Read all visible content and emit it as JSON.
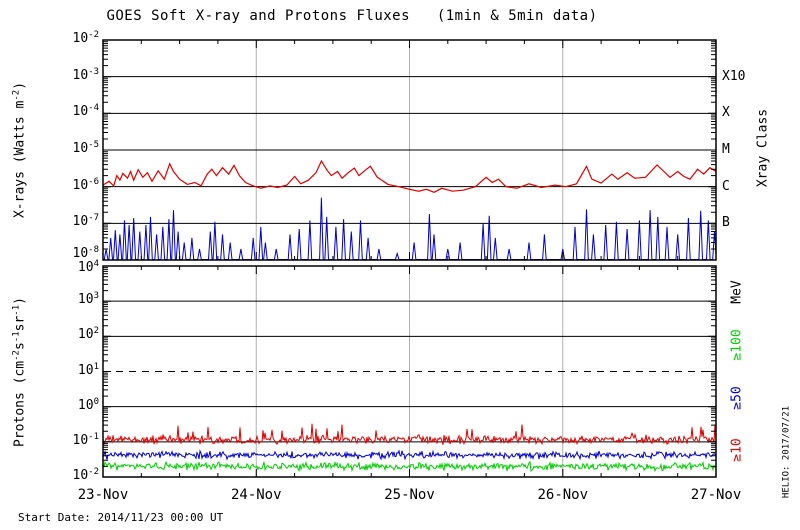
{
  "title": "GOES Soft X-ray and Protons Fluxes   (1min & 5min data)",
  "footer": {
    "start_date": "Start Date: 2014/11/23 00:00 UT"
  },
  "watermark": "HELIO: 2017/07/21",
  "colors": {
    "red": "#dd0000",
    "blue": "#0000cc",
    "green": "#00cc00",
    "grid_gray": "#b0b0b0",
    "frame": "#000000"
  },
  "x_axis": {
    "dates": [
      "23-Nov",
      "24-Nov",
      "25-Nov",
      "26-Nov",
      "27-Nov"
    ],
    "x_unit": "days since 2014-11-23 00:00 UT",
    "xlim_days": [
      0,
      4
    ],
    "minor_ticks_per_day": 4
  },
  "chart_data": [
    {
      "type": "line",
      "panel": "xray",
      "ylabel": "X-rays (Watts m-2)",
      "ylabel_segments": [
        {
          "text": "X-rays (Watts m"
        },
        {
          "text": "-2",
          "sup": true
        },
        {
          "text": ")"
        }
      ],
      "yscale": "log",
      "ylim": [
        1e-08,
        0.01
      ],
      "yticks_exponents": [
        -2,
        -3,
        -4,
        -5,
        -6,
        -7,
        -8
      ],
      "grid_exponents_solid": [
        -3,
        -4,
        -5,
        -6,
        -7
      ],
      "right_axis_title": "Xray Class",
      "right_class_labels": [
        {
          "label": "X10",
          "exponent": -3
        },
        {
          "label": "X",
          "exponent": -4
        },
        {
          "label": "M",
          "exponent": -5
        },
        {
          "label": "C",
          "exponent": -6
        },
        {
          "label": "B",
          "exponent": -7
        }
      ],
      "series": [
        {
          "name": "xray-long-wavelength",
          "color_key": "red",
          "points": [
            [
              0.0,
              1.1e-06
            ],
            [
              0.04,
              1.4e-06
            ],
            [
              0.07,
              1.05e-06
            ],
            [
              0.09,
              2e-06
            ],
            [
              0.11,
              1.5e-06
            ],
            [
              0.13,
              2.3e-06
            ],
            [
              0.16,
              1.7e-06
            ],
            [
              0.18,
              2.6e-06
            ],
            [
              0.2,
              1.5e-06
            ],
            [
              0.23,
              2.9e-06
            ],
            [
              0.26,
              1.8e-06
            ],
            [
              0.29,
              2.4e-06
            ],
            [
              0.32,
              1.4e-06
            ],
            [
              0.36,
              2.7e-06
            ],
            [
              0.4,
              1.6e-06
            ],
            [
              0.435,
              4.2e-06
            ],
            [
              0.46,
              2.6e-06
            ],
            [
              0.5,
              1.6e-06
            ],
            [
              0.55,
              1.15e-06
            ],
            [
              0.6,
              1.3e-06
            ],
            [
              0.64,
              1.05e-06
            ],
            [
              0.68,
              2.2e-06
            ],
            [
              0.71,
              3e-06
            ],
            [
              0.74,
              2e-06
            ],
            [
              0.78,
              3.3e-06
            ],
            [
              0.82,
              2.2e-06
            ],
            [
              0.855,
              3.8e-06
            ],
            [
              0.89,
              2e-06
            ],
            [
              0.93,
              1.3e-06
            ],
            [
              0.98,
              1.05e-06
            ],
            [
              1.03,
              9e-07
            ],
            [
              1.09,
              1.05e-06
            ],
            [
              1.14,
              9.5e-07
            ],
            [
              1.2,
              1.1e-06
            ],
            [
              1.25,
              1.9e-06
            ],
            [
              1.29,
              1.2e-06
            ],
            [
              1.34,
              1.5e-06
            ],
            [
              1.39,
              2.4e-06
            ],
            [
              1.425,
              5e-06
            ],
            [
              1.46,
              2.9e-06
            ],
            [
              1.49,
              2e-06
            ],
            [
              1.53,
              2.6e-06
            ],
            [
              1.56,
              1.7e-06
            ],
            [
              1.6,
              2.4e-06
            ],
            [
              1.64,
              3.2e-06
            ],
            [
              1.67,
              2e-06
            ],
            [
              1.71,
              2.8e-06
            ],
            [
              1.745,
              3.6e-06
            ],
            [
              1.79,
              1.8e-06
            ],
            [
              1.86,
              1.15e-06
            ],
            [
              1.93,
              1e-06
            ],
            [
              2.0,
              8.5e-07
            ],
            [
              2.06,
              7.5e-07
            ],
            [
              2.11,
              8.5e-07
            ],
            [
              2.16,
              7e-07
            ],
            [
              2.21,
              9e-07
            ],
            [
              2.28,
              7.5e-07
            ],
            [
              2.35,
              8e-07
            ],
            [
              2.43,
              1e-06
            ],
            [
              2.5,
              1.8e-06
            ],
            [
              2.54,
              1.3e-06
            ],
            [
              2.58,
              1.6e-06
            ],
            [
              2.63,
              1e-06
            ],
            [
              2.7,
              9e-07
            ],
            [
              2.78,
              1.2e-06
            ],
            [
              2.86,
              9.5e-07
            ],
            [
              2.95,
              1.1e-06
            ],
            [
              3.02,
              1e-06
            ],
            [
              3.09,
              1.2e-06
            ],
            [
              3.155,
              3.6e-06
            ],
            [
              3.19,
              1.6e-06
            ],
            [
              3.25,
              1.25e-06
            ],
            [
              3.32,
              2.2e-06
            ],
            [
              3.36,
              1.6e-06
            ],
            [
              3.42,
              2.4e-06
            ],
            [
              3.47,
              1.7e-06
            ],
            [
              3.54,
              1.8e-06
            ],
            [
              3.615,
              3.9e-06
            ],
            [
              3.66,
              2.6e-06
            ],
            [
              3.7,
              1.8e-06
            ],
            [
              3.75,
              2.6e-06
            ],
            [
              3.79,
              1.9e-06
            ],
            [
              3.83,
              1.6e-06
            ],
            [
              3.88,
              3e-06
            ],
            [
              3.92,
              2.2e-06
            ],
            [
              3.96,
              3.3e-06
            ],
            [
              4.0,
              2.6e-06
            ]
          ]
        },
        {
          "name": "xray-short-wavelength",
          "color_key": "blue",
          "baseline": 8e-09,
          "spikes": [
            [
              0.02,
              2e-08
            ],
            [
              0.05,
              4e-08
            ],
            [
              0.08,
              6.5e-08
            ],
            [
              0.11,
              5e-08
            ],
            [
              0.14,
              1.2e-07
            ],
            [
              0.17,
              9e-08
            ],
            [
              0.2,
              1.4e-07
            ],
            [
              0.24,
              6e-08
            ],
            [
              0.28,
              9e-08
            ],
            [
              0.31,
              1.5e-07
            ],
            [
              0.35,
              5e-08
            ],
            [
              0.39,
              8e-08
            ],
            [
              0.43,
              1.3e-07
            ],
            [
              0.46,
              2.3e-07
            ],
            [
              0.49,
              6e-08
            ],
            [
              0.53,
              3e-08
            ],
            [
              0.58,
              4e-08
            ],
            [
              0.63,
              2e-08
            ],
            [
              0.7,
              6e-08
            ],
            [
              0.73,
              1.1e-07
            ],
            [
              0.78,
              5e-08
            ],
            [
              0.83,
              3e-08
            ],
            [
              0.9,
              2e-08
            ],
            [
              0.98,
              4e-08
            ],
            [
              1.03,
              8e-08
            ],
            [
              1.06,
              3e-08
            ],
            [
              1.13,
              2e-08
            ],
            [
              1.22,
              5e-08
            ],
            [
              1.28,
              7e-08
            ],
            [
              1.35,
              1.2e-07
            ],
            [
              1.425,
              5e-07
            ],
            [
              1.46,
              1.5e-07
            ],
            [
              1.52,
              8e-08
            ],
            [
              1.57,
              1.3e-07
            ],
            [
              1.62,
              6e-08
            ],
            [
              1.68,
              1.2e-07
            ],
            [
              1.73,
              4e-08
            ],
            [
              1.8,
              2e-08
            ],
            [
              1.92,
              1.5e-08
            ],
            [
              2.03,
              3e-08
            ],
            [
              2.13,
              1.8e-07
            ],
            [
              2.16,
              5e-08
            ],
            [
              2.25,
              2e-08
            ],
            [
              2.33,
              3e-08
            ],
            [
              2.48,
              1e-07
            ],
            [
              2.52,
              1.6e-07
            ],
            [
              2.56,
              4e-08
            ],
            [
              2.65,
              2e-08
            ],
            [
              2.78,
              3e-08
            ],
            [
              2.88,
              5e-08
            ],
            [
              3.0,
              2e-08
            ],
            [
              3.08,
              8e-08
            ],
            [
              3.155,
              2.4e-07
            ],
            [
              3.2,
              5e-08
            ],
            [
              3.28,
              9e-08
            ],
            [
              3.35,
              1.1e-07
            ],
            [
              3.42,
              7e-08
            ],
            [
              3.5,
              1.2e-07
            ],
            [
              3.57,
              2.3e-07
            ],
            [
              3.62,
              1.5e-07
            ],
            [
              3.68,
              8e-08
            ],
            [
              3.75,
              5e-08
            ],
            [
              3.82,
              1.4e-07
            ],
            [
              3.9,
              2.2e-07
            ],
            [
              3.95,
              1.2e-07
            ],
            [
              3.99,
              6e-08
            ]
          ]
        }
      ]
    },
    {
      "type": "line",
      "panel": "protons",
      "ylabel": "Protons (cm-2s-1sr-1)",
      "ylabel_segments": [
        {
          "text": "Protons (cm"
        },
        {
          "text": "-2",
          "sup": true
        },
        {
          "text": "s"
        },
        {
          "text": "-1",
          "sup": true
        },
        {
          "text": "sr"
        },
        {
          "text": "-1",
          "sup": true
        },
        {
          "text": ")"
        }
      ],
      "yscale": "log",
      "ylim": [
        0.01,
        10000.0
      ],
      "yticks_exponents": [
        4,
        3,
        2,
        1,
        0,
        -1,
        -2
      ],
      "grid_exponents_solid": [
        3,
        2,
        0,
        -1
      ],
      "grid_exponents_dashed": [
        1
      ],
      "alert_threshold": 10,
      "right_axis_title": "MeV",
      "right_energy_labels": [
        {
          "label": "≥100",
          "color_key": "green"
        },
        {
          "label": "≥50",
          "color_key": "blue"
        },
        {
          "label": "≥10",
          "color_key": "red"
        }
      ],
      "series": [
        {
          "name": "protons-ge-10MeV",
          "color_key": "red",
          "band": {
            "center": 0.115,
            "log_spread": 0.17
          }
        },
        {
          "name": "protons-ge-50MeV",
          "color_key": "blue",
          "band": {
            "center": 0.042,
            "log_spread": 0.14
          }
        },
        {
          "name": "protons-ge-100MeV",
          "color_key": "green",
          "band": {
            "center": 0.02,
            "log_spread": 0.15
          }
        }
      ]
    }
  ]
}
